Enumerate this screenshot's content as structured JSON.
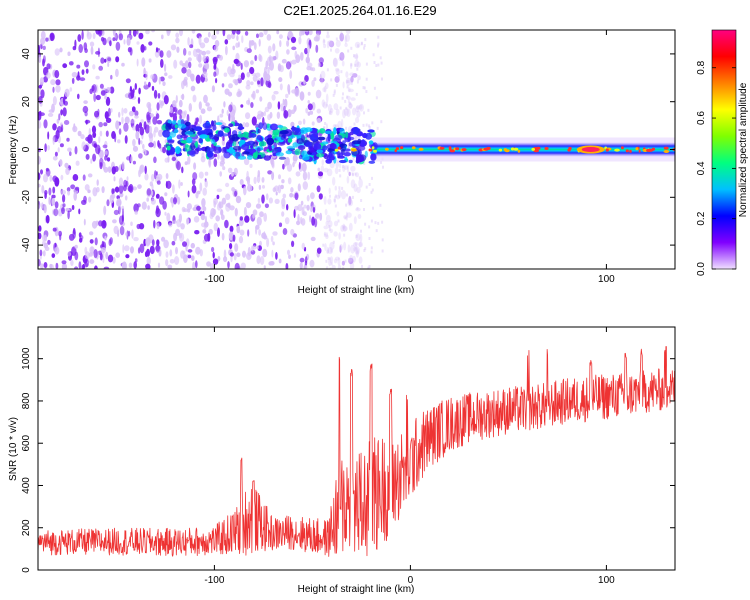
{
  "figure": {
    "title": "C2E1.2025.264.01.16.E29"
  },
  "chart_data": [
    {
      "type": "heatmap",
      "panel": "spectrogram",
      "xlabel": "Height of straight line (km)",
      "ylabel": "Frequency (Hz)",
      "xlim": [
        -190,
        135
      ],
      "ylim": [
        -50,
        50
      ],
      "xticks": [
        -100,
        0,
        100
      ],
      "xtick_labels": [
        "-100",
        "0",
        "100"
      ],
      "yticks": [
        -40,
        -20,
        0,
        20,
        40
      ],
      "ytick_labels": [
        "-40",
        "-20",
        "0",
        "20",
        "40"
      ],
      "colorbar": {
        "label": "Normalized spectral amplitude",
        "range": [
          0,
          0.95
        ],
        "ticks": [
          0,
          0.2,
          0.4,
          0.6,
          0.8
        ],
        "tick_labels": [
          "0.0",
          "0.2",
          "0.4",
          "0.6",
          "0.8"
        ],
        "colormap": [
          "#f0e0ff",
          "#8000ff",
          "#0000ff",
          "#00c0ff",
          "#00ff80",
          "#80ff00",
          "#ffff00",
          "#ff8000",
          "#ff0000",
          "#ff0080"
        ]
      },
      "features": {
        "noise_region_x": [
          -190,
          -45
        ],
        "signal_band_start_x": -125,
        "signal_band_center_hz": 0,
        "signal_band_width_hz": 8,
        "peak_amplitude_x": 92
      },
      "colors": {
        "noise_strong": "#7a1ff0",
        "noise_light": "#d8c0f8",
        "band_core": "#00e080",
        "band_edge": "#2020ff",
        "peak": "#ff2060"
      }
    },
    {
      "type": "line",
      "panel": "snr",
      "xlabel": "Height of straight line (km)",
      "ylabel": "SNR (10 * v/v)",
      "xlim": [
        -190,
        135
      ],
      "ylim": [
        0,
        1150
      ],
      "xticks": [
        -100,
        0,
        100
      ],
      "xtick_labels": [
        "-100",
        "0",
        "100"
      ],
      "yticks": [
        0,
        200,
        400,
        600,
        800,
        1000
      ],
      "ytick_labels": [
        "0",
        "200",
        "400",
        "600",
        "800",
        "1000"
      ],
      "series": [
        {
          "name": "SNR",
          "color": "#ee3333",
          "baseline_points": [
            [
              -190,
              130
            ],
            [
              -150,
              135
            ],
            [
              -120,
              130
            ],
            [
              -100,
              140
            ],
            [
              -90,
              175
            ],
            [
              -82,
              250
            ],
            [
              -78,
              230
            ],
            [
              -70,
              170
            ],
            [
              -60,
              180
            ],
            [
              -50,
              160
            ],
            [
              -42,
              150
            ],
            [
              -38,
              250
            ],
            [
              -34,
              330
            ],
            [
              -30,
              320
            ],
            [
              -25,
              290
            ],
            [
              -20,
              330
            ],
            [
              -15,
              380
            ],
            [
              -10,
              400
            ],
            [
              -5,
              450
            ],
            [
              0,
              500
            ],
            [
              5,
              580
            ],
            [
              10,
              630
            ],
            [
              15,
              660
            ],
            [
              20,
              690
            ],
            [
              30,
              720
            ],
            [
              40,
              740
            ],
            [
              50,
              755
            ],
            [
              60,
              765
            ],
            [
              70,
              780
            ],
            [
              80,
              800
            ],
            [
              90,
              810
            ],
            [
              100,
              820
            ],
            [
              110,
              830
            ],
            [
              120,
              845
            ],
            [
              135,
              860
            ]
          ],
          "noise_points": [
            [
              -190,
              60
            ],
            [
              -100,
              70
            ],
            [
              -90,
              110
            ],
            [
              -82,
              180
            ],
            [
              -70,
              80
            ],
            [
              -42,
              90
            ],
            [
              -36,
              260
            ],
            [
              -20,
              300
            ],
            [
              -5,
              210
            ],
            [
              10,
              150
            ],
            [
              30,
              120
            ],
            [
              60,
              110
            ],
            [
              100,
              110
            ],
            [
              135,
              100
            ]
          ],
          "spikes": [
            [
              -86,
              545
            ],
            [
              -80,
              450
            ],
            [
              -36,
              1030
            ],
            [
              -30,
              950
            ],
            [
              -20,
              980
            ],
            [
              -10,
              870
            ],
            [
              -2,
              840
            ],
            [
              60,
              1040
            ],
            [
              70,
              1050
            ],
            [
              92,
              1000
            ],
            [
              110,
              1040
            ],
            [
              118,
              1050
            ],
            [
              130,
              1070
            ]
          ]
        }
      ]
    }
  ]
}
